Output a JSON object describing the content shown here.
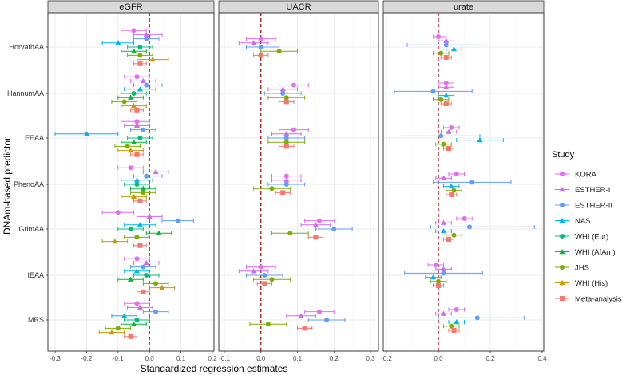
{
  "chart_data": {
    "type": "forest",
    "xlabel": "Standardized regression estimates",
    "ylabel": "DNAm-based predictor",
    "legend_title": "Study",
    "legend_position": "right",
    "reference_line": 0,
    "predictors": [
      "HorvathAA",
      "HannumAA",
      "EEAA",
      "PhenoAA",
      "GrimAA",
      "IEAA",
      "MRS"
    ],
    "studies": [
      {
        "name": "KORA",
        "color": "#e76bf3",
        "shape": "circle"
      },
      {
        "name": "ESTHER-I",
        "color": "#cf6be6",
        "shape": "triangle"
      },
      {
        "name": "ESTHER-II",
        "color": "#619cff",
        "shape": "circle"
      },
      {
        "name": "NAS",
        "color": "#00b4ef",
        "shape": "triangle"
      },
      {
        "name": "WHI (Eur)",
        "color": "#00bf7d",
        "shape": "circle"
      },
      {
        "name": "WHI (AfAm)",
        "color": "#00ba38",
        "shape": "triangle"
      },
      {
        "name": "JHS",
        "color": "#7cae00",
        "shape": "circle"
      },
      {
        "name": "WHI (His)",
        "color": "#c49a00",
        "shape": "triangle"
      },
      {
        "name": "Meta-analysis",
        "color": "#f8766d",
        "shape": "square"
      }
    ],
    "panels": [
      {
        "title": "eGFR",
        "xlim": [
          -0.3,
          0.2
        ],
        "ticks": [
          -0.3,
          -0.2,
          -0.1,
          0.0,
          0.1,
          0.2
        ],
        "tick_labels": [
          "-0.3",
          "-0.2",
          "-0.1",
          "0.0",
          "0.1",
          "0.2"
        ],
        "estimates": {
          "HorvathAA": [
            [
              -0.05,
              -0.09,
              -0.01
            ],
            [
              -0.01,
              -0.05,
              0.04
            ],
            [
              -0.01,
              -0.05,
              0.03
            ],
            [
              -0.1,
              -0.15,
              -0.05
            ],
            [
              -0.03,
              -0.07,
              0.01
            ],
            [
              -0.05,
              -0.09,
              -0.01
            ],
            [
              -0.03,
              -0.07,
              0.01
            ],
            [
              0.01,
              -0.04,
              0.06
            ],
            [
              -0.03,
              -0.05,
              -0.01
            ]
          ],
          "HannumAA": [
            [
              -0.04,
              -0.08,
              0.0
            ],
            [
              -0.02,
              -0.06,
              0.02
            ],
            [
              -0.01,
              -0.05,
              0.04
            ],
            [
              -0.03,
              -0.08,
              0.02
            ],
            [
              -0.05,
              -0.09,
              -0.01
            ],
            [
              -0.06,
              -0.1,
              -0.02
            ],
            [
              -0.08,
              -0.12,
              -0.04
            ],
            [
              -0.05,
              -0.09,
              -0.01
            ],
            [
              -0.04,
              -0.06,
              -0.02
            ]
          ],
          "EEAA": [
            [
              -0.04,
              -0.09,
              0.0
            ],
            [
              -0.04,
              -0.08,
              0.0
            ],
            [
              -0.02,
              -0.06,
              0.02
            ],
            [
              -0.2,
              -0.3,
              -0.1
            ],
            [
              -0.03,
              -0.07,
              0.01
            ],
            [
              -0.05,
              -0.09,
              -0.01
            ],
            [
              -0.07,
              -0.11,
              -0.03
            ],
            [
              -0.06,
              -0.1,
              -0.02
            ],
            [
              -0.04,
              -0.06,
              -0.02
            ]
          ],
          "PhenoAA": [
            [
              -0.06,
              -0.1,
              -0.02
            ],
            [
              0.02,
              -0.02,
              0.06
            ],
            [
              -0.01,
              -0.05,
              0.04
            ],
            [
              -0.04,
              -0.09,
              0.01
            ],
            [
              -0.04,
              -0.08,
              0.0
            ],
            [
              -0.02,
              -0.06,
              0.02
            ],
            [
              -0.02,
              -0.06,
              0.02
            ],
            [
              -0.05,
              -0.09,
              -0.01
            ],
            [
              -0.03,
              -0.05,
              -0.01
            ]
          ],
          "GrimAA": [
            [
              -0.1,
              -0.15,
              -0.05
            ],
            [
              0.0,
              -0.04,
              0.04
            ],
            [
              0.09,
              0.04,
              0.14
            ],
            [
              -0.03,
              -0.08,
              0.02
            ],
            [
              -0.06,
              -0.1,
              -0.02
            ],
            [
              0.03,
              -0.01,
              0.07
            ],
            [
              -0.04,
              -0.08,
              0.0
            ],
            [
              -0.11,
              -0.15,
              -0.07
            ],
            [
              -0.03,
              -0.05,
              -0.01
            ]
          ],
          "IEAA": [
            [
              -0.04,
              -0.08,
              0.0
            ],
            [
              -0.01,
              -0.05,
              0.03
            ],
            [
              -0.02,
              -0.06,
              0.02
            ],
            [
              -0.04,
              -0.08,
              0.0
            ],
            [
              -0.01,
              -0.05,
              0.03
            ],
            [
              -0.06,
              -0.1,
              -0.02
            ],
            [
              0.02,
              -0.02,
              0.06
            ],
            [
              0.04,
              0.0,
              0.08
            ],
            [
              -0.02,
              -0.04,
              0.0
            ]
          ],
          "MRS": [
            [
              -0.04,
              -0.08,
              0.0
            ],
            [
              -0.03,
              -0.07,
              0.01
            ],
            [
              0.02,
              -0.02,
              0.06
            ],
            [
              -0.08,
              -0.12,
              -0.04
            ],
            [
              -0.04,
              -0.08,
              0.0
            ],
            [
              -0.05,
              -0.09,
              -0.01
            ],
            [
              -0.1,
              -0.14,
              -0.06
            ],
            [
              -0.12,
              -0.16,
              -0.08
            ],
            [
              -0.06,
              -0.08,
              -0.04
            ]
          ]
        }
      },
      {
        "title": "UACR",
        "xlim": [
          -0.1,
          0.3
        ],
        "ticks": [
          -0.1,
          0.0,
          0.1,
          0.2,
          0.3
        ],
        "tick_labels": [
          "-0.1",
          "0.0",
          "0.1",
          "0.2",
          "0.3"
        ],
        "estimates": {
          "HorvathAA": [
            [
              0.0,
              -0.04,
              0.04
            ],
            [
              -0.02,
              -0.06,
              0.02
            ],
            [
              0.0,
              -0.04,
              0.05
            ],
            [
              0.05,
              0.0,
              0.1
            ],
            [
              0.0,
              -0.02,
              0.02
            ]
          ],
          "HannumAA": [
            [
              0.09,
              0.05,
              0.13
            ],
            [
              0.06,
              0.02,
              0.1
            ],
            [
              0.06,
              0.01,
              0.11
            ],
            [
              0.07,
              0.02,
              0.12
            ],
            [
              0.07,
              0.05,
              0.09
            ]
          ],
          "EEAA": [
            [
              0.09,
              0.05,
              0.13
            ],
            [
              0.07,
              0.03,
              0.11
            ],
            [
              0.07,
              0.02,
              0.12
            ],
            [
              0.07,
              0.02,
              0.12
            ],
            [
              0.07,
              0.05,
              0.09
            ]
          ],
          "PhenoAA": [
            [
              0.07,
              0.03,
              0.11
            ],
            [
              0.07,
              0.03,
              0.11
            ],
            [
              0.07,
              0.02,
              0.12
            ],
            [
              0.03,
              -0.02,
              0.08
            ],
            [
              0.06,
              0.04,
              0.08
            ]
          ],
          "GrimAA": [
            [
              0.16,
              0.12,
              0.2
            ],
            [
              0.15,
              0.11,
              0.19
            ],
            [
              0.2,
              0.15,
              0.25
            ],
            [
              0.08,
              0.03,
              0.13
            ],
            [
              0.15,
              0.13,
              0.17
            ]
          ],
          "IEAA": [
            [
              0.0,
              -0.04,
              0.04
            ],
            [
              -0.02,
              -0.06,
              0.02
            ],
            [
              0.01,
              -0.04,
              0.06
            ],
            [
              0.03,
              -0.02,
              0.08
            ],
            [
              0.01,
              -0.01,
              0.03
            ]
          ],
          "MRS": [
            [
              0.16,
              0.12,
              0.2
            ],
            [
              0.11,
              0.07,
              0.15
            ],
            [
              0.18,
              0.13,
              0.23
            ],
            [
              0.02,
              -0.03,
              0.07
            ],
            [
              0.12,
              0.1,
              0.14
            ]
          ]
        }
      },
      {
        "title": "urate",
        "xlim": [
          -0.2,
          0.4
        ],
        "ticks": [
          -0.2,
          0.0,
          0.2,
          0.4
        ],
        "tick_labels": [
          "-0.2",
          "0.0",
          "0.2",
          "0.4"
        ],
        "estimates": {
          "HorvathAA": [
            [
              0.0,
              -0.02,
              0.03
            ],
            [
              0.03,
              0.0,
              0.06
            ],
            [
              0.03,
              -0.12,
              0.18
            ],
            [
              0.06,
              0.03,
              0.09
            ],
            [
              0.01,
              -0.02,
              0.04
            ],
            [
              0.03,
              0.01,
              0.05
            ]
          ],
          "HannumAA": [
            [
              0.03,
              0.0,
              0.06
            ],
            [
              0.03,
              0.0,
              0.06
            ],
            [
              -0.02,
              -0.17,
              0.13
            ],
            [
              0.03,
              0.0,
              0.06
            ],
            [
              0.01,
              -0.02,
              0.04
            ],
            [
              0.03,
              0.01,
              0.05
            ]
          ],
          "EEAA": [
            [
              0.05,
              0.02,
              0.08
            ],
            [
              0.04,
              0.01,
              0.07
            ],
            [
              0.01,
              -0.14,
              0.16
            ],
            [
              0.16,
              0.07,
              0.25
            ],
            [
              0.02,
              -0.01,
              0.05
            ],
            [
              0.04,
              0.02,
              0.06
            ]
          ],
          "PhenoAA": [
            [
              0.07,
              0.04,
              0.1
            ],
            [
              0.02,
              -0.01,
              0.05
            ],
            [
              0.13,
              -0.02,
              0.28
            ],
            [
              0.05,
              0.02,
              0.08
            ],
            [
              0.06,
              0.03,
              0.09
            ],
            [
              0.05,
              0.03,
              0.07
            ]
          ],
          "GrimAA": [
            [
              0.1,
              0.07,
              0.13
            ],
            [
              0.02,
              -0.01,
              0.05
            ],
            [
              0.12,
              -0.03,
              0.37
            ],
            [
              0.02,
              -0.01,
              0.05
            ],
            [
              0.06,
              0.03,
              0.09
            ],
            [
              0.04,
              0.02,
              0.06
            ]
          ],
          "IEAA": [
            [
              -0.01,
              -0.04,
              0.02
            ],
            [
              0.02,
              -0.01,
              0.05
            ],
            [
              0.02,
              -0.13,
              0.17
            ],
            [
              -0.02,
              -0.05,
              0.01
            ],
            [
              0.0,
              -0.03,
              0.03
            ],
            [
              0.0,
              -0.02,
              0.02
            ]
          ],
          "MRS": [
            [
              0.07,
              0.04,
              0.1
            ],
            [
              0.02,
              -0.01,
              0.05
            ],
            [
              0.15,
              0.0,
              0.33
            ],
            [
              0.07,
              0.04,
              0.1
            ],
            [
              0.05,
              0.02,
              0.08
            ],
            [
              0.06,
              0.04,
              0.08
            ]
          ]
        }
      }
    ]
  }
}
